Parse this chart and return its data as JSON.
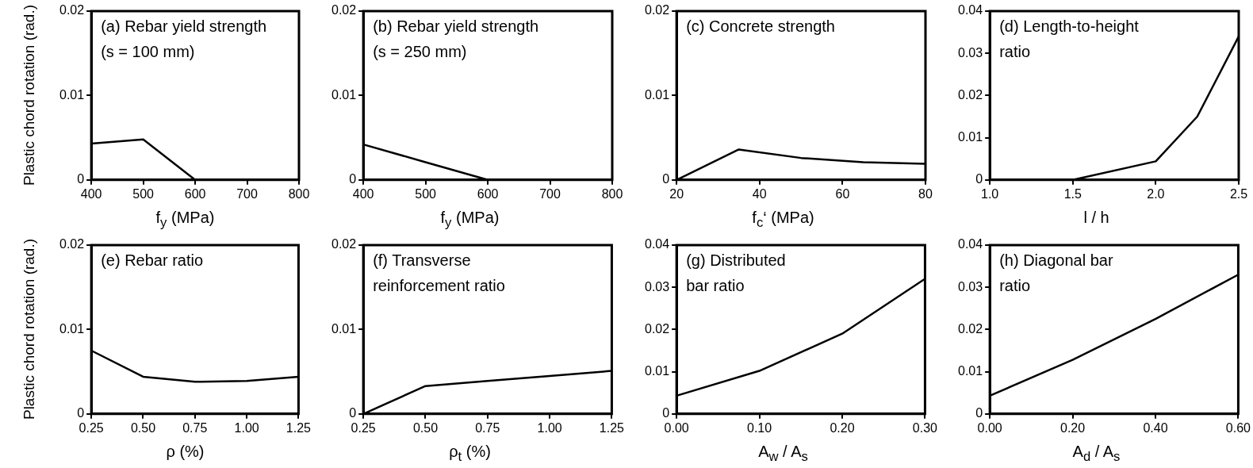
{
  "chart_data": [
    {
      "type": "line",
      "annotations": [
        "(a) Rebar yield strength",
        "(s = 100 mm)"
      ],
      "xlabel": "f$_{y}$ (MPa)",
      "ylabel": "Plastic chord rotation (rad.)",
      "x": [
        400,
        500,
        600
      ],
      "series": [
        {
          "color": "#000000",
          "values": [
            0.0043,
            0.0048,
            0
          ]
        }
      ],
      "xlim": [
        400,
        800
      ],
      "xticks": [
        400,
        500,
        600,
        700,
        800
      ],
      "ylim": [
        0,
        0.02
      ],
      "yticks": [
        0,
        0.01,
        0.02
      ]
    },
    {
      "type": "line",
      "annotations": [
        "(b) Rebar yield strength",
        "(s = 250 mm)"
      ],
      "xlabel": "f$_{y}$ (MPa)",
      "x": [
        400,
        500,
        600
      ],
      "series": [
        {
          "color": "#000000",
          "values": [
            0.0042,
            0.0021,
            0
          ]
        }
      ],
      "xlim": [
        400,
        800
      ],
      "xticks": [
        400,
        500,
        600,
        700,
        800
      ],
      "ylim": [
        0,
        0.02
      ],
      "yticks": [
        0,
        0.01,
        0.02
      ]
    },
    {
      "type": "line",
      "annotations": [
        "(c) Concrete strength"
      ],
      "xlabel": "f$_{c}$‘ (MPa)",
      "x": [
        20,
        35,
        50,
        65,
        80
      ],
      "series": [
        {
          "color": "#000000",
          "values": [
            0,
            0.0036,
            0.0026,
            0.0021,
            0.0019
          ]
        }
      ],
      "xlim": [
        20,
        80
      ],
      "xticks": [
        20,
        40,
        60,
        80
      ],
      "ylim": [
        0,
        0.02
      ],
      "yticks": [
        0,
        0.01,
        0.02
      ]
    },
    {
      "type": "line",
      "annotations": [
        "(d) Length-to-height",
        "ratio"
      ],
      "xlabel": "l / h",
      "x": [
        1.5,
        2.0,
        2.25,
        2.5
      ],
      "series": [
        {
          "color": "#000000",
          "values": [
            0,
            0.0044,
            0.015,
            0.034
          ]
        }
      ],
      "xlim": [
        1.0,
        2.5
      ],
      "xticks": [
        {
          "value": 1,
          "label": "1.0"
        },
        1.5,
        {
          "value": 2,
          "label": "2.0"
        },
        2.5
      ],
      "ylim": [
        0,
        0.04
      ],
      "yticks": [
        0,
        0.01,
        0.02,
        0.03,
        0.04
      ]
    },
    {
      "type": "line",
      "annotations": [
        "(e) Rebar ratio"
      ],
      "xlabel": "ρ (%)",
      "ylabel": "Plastic chord rotation (rad.)",
      "x": [
        0.25,
        0.5,
        0.75,
        1.0,
        1.25
      ],
      "series": [
        {
          "color": "#000000",
          "values": [
            0.0075,
            0.0044,
            0.0038,
            0.0039,
            0.0044
          ]
        }
      ],
      "xlim": [
        0.25,
        1.25
      ],
      "xticks": [
        0.25,
        {
          "value": 0.5,
          "label": "0.50"
        },
        0.75,
        {
          "value": 1,
          "label": "1.00"
        },
        1.25
      ],
      "ylim": [
        0,
        0.02
      ],
      "yticks": [
        0,
        0.01,
        0.02
      ]
    },
    {
      "type": "line",
      "annotations": [
        "(f) Transverse",
        "reinforcement ratio"
      ],
      "xlabel": "ρ$_{t}$ (%)",
      "x": [
        0.25,
        0.5,
        0.75,
        1.0,
        1.25
      ],
      "series": [
        {
          "color": "#000000",
          "values": [
            0,
            0.0033,
            0.0039,
            0.0045,
            0.0051
          ]
        }
      ],
      "xlim": [
        0.25,
        1.25
      ],
      "xticks": [
        0.25,
        {
          "value": 0.5,
          "label": "0.50"
        },
        0.75,
        {
          "value": 1,
          "label": "1.00"
        },
        1.25
      ],
      "ylim": [
        0,
        0.02
      ],
      "yticks": [
        0,
        0.01,
        0.02
      ]
    },
    {
      "type": "line",
      "annotations": [
        "(g) Distributed",
        "bar ratio"
      ],
      "xlabel": "A$_{w}$ / A$_{s}$",
      "x": [
        0,
        0.1,
        0.2,
        0.3
      ],
      "series": [
        {
          "color": "#000000",
          "values": [
            0.0043,
            0.0102,
            0.019,
            0.032
          ]
        }
      ],
      "xlim": [
        0,
        0.3
      ],
      "xticks": [
        {
          "value": 0,
          "label": "0.00"
        },
        {
          "value": 0.1,
          "label": "0.10"
        },
        {
          "value": 0.2,
          "label": "0.20"
        },
        {
          "value": 0.3,
          "label": "0.30"
        }
      ],
      "ylim": [
        0,
        0.04
      ],
      "yticks": [
        0,
        0.01,
        0.02,
        0.03,
        0.04
      ]
    },
    {
      "type": "line",
      "annotations": [
        "(h) Diagonal bar",
        "ratio"
      ],
      "xlabel": "A$_{d}$ / A$_{s}$",
      "x": [
        0,
        0.2,
        0.4,
        0.6
      ],
      "series": [
        {
          "color": "#000000",
          "values": [
            0.0043,
            0.0128,
            0.0225,
            0.033
          ]
        }
      ],
      "xlim": [
        0,
        0.6
      ],
      "xticks": [
        {
          "value": 0,
          "label": "0.00"
        },
        {
          "value": 0.2,
          "label": "0.20"
        },
        {
          "value": 0.4,
          "label": "0.40"
        },
        {
          "value": 0.6,
          "label": "0.60"
        }
      ],
      "ylim": [
        0,
        0.04
      ],
      "yticks": [
        0,
        0.01,
        0.02,
        0.03,
        0.04
      ]
    }
  ]
}
